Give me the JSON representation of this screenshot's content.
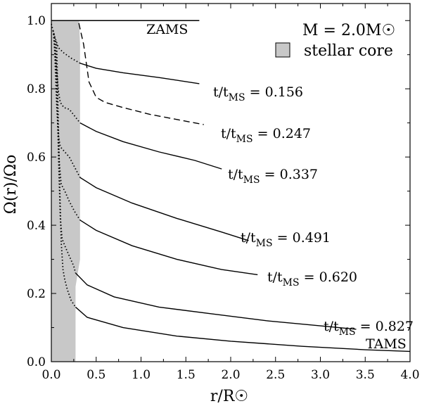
{
  "chart_data": {
    "type": "line",
    "title": "",
    "xlabel": "r/R☉",
    "ylabel": "Ω(r)/Ωo",
    "xlim": [
      0.0,
      4.0
    ],
    "ylim": [
      0.0,
      1.05
    ],
    "xticks": [
      0.0,
      0.5,
      1.0,
      1.5,
      2.0,
      2.5,
      3.0,
      3.5,
      4.0
    ],
    "xtick_labels": [
      "0.0",
      "0.5",
      "1.0",
      "1.5",
      "2.0",
      "2.5",
      "3.0",
      "3.5",
      "4.0"
    ],
    "yticks": [
      0.0,
      0.2,
      0.4,
      0.6,
      0.8,
      1.0
    ],
    "ytick_labels": [
      "0.0",
      "0.2",
      "0.4",
      "0.6",
      "0.8",
      "1.0"
    ],
    "legend": {
      "mass_label": "M = 2.0M☉",
      "core_label": "stellar core",
      "core_color": "#c8c8c8",
      "placement": "top-right"
    },
    "core_region": [
      [
        0.0,
        1.0
      ],
      [
        0.31,
        1.0
      ],
      [
        0.32,
        0.93
      ],
      [
        0.32,
        0.3
      ],
      [
        0.27,
        0.22
      ],
      [
        0.27,
        0.0
      ],
      [
        0.0,
        0.0
      ]
    ],
    "series": [
      {
        "name": "ZAMS",
        "label": "ZAMS",
        "style": "solid",
        "x": [
          0.0,
          1.65
        ],
        "y": [
          1.0,
          1.0
        ]
      },
      {
        "name": "t/tMS = 0.156",
        "label_prefix": "t/t",
        "label_sub": "MS",
        "label_value": " = 0.156",
        "style": "solid",
        "x": [
          0.32,
          0.5,
          0.8,
          1.2,
          1.65
        ],
        "y": [
          0.875,
          0.86,
          0.847,
          0.833,
          0.815
        ]
      },
      {
        "name": "t/tMS = 0.247",
        "label_prefix": "t/t",
        "label_sub": "MS",
        "label_value": " = 0.247",
        "style": "dashed",
        "x": [
          0.0,
          0.3,
          0.36,
          0.42,
          0.5,
          0.6,
          0.8,
          1.1,
          1.4,
          1.7
        ],
        "y": [
          1.0,
          1.0,
          0.93,
          0.82,
          0.775,
          0.76,
          0.745,
          0.725,
          0.71,
          0.695
        ]
      },
      {
        "name": "t/tMS = 0.337",
        "label_prefix": "t/t",
        "label_sub": "MS",
        "label_value": " = 0.337",
        "style": "solid",
        "x": [
          0.32,
          0.5,
          0.8,
          1.2,
          1.6,
          1.9
        ],
        "y": [
          0.7,
          0.675,
          0.645,
          0.615,
          0.59,
          0.565
        ]
      },
      {
        "name": "t/tMS = 0.491",
        "label_prefix": "t/t",
        "label_sub": "MS",
        "label_value": " = 0.491",
        "style": "solid",
        "x": [
          0.32,
          0.5,
          0.9,
          1.4,
          1.9,
          2.2
        ],
        "y": [
          0.54,
          0.51,
          0.465,
          0.42,
          0.38,
          0.355
        ]
      },
      {
        "name": "t/tMS = 0.620",
        "label_prefix": "t/t",
        "label_sub": "MS",
        "label_value": " = 0.620",
        "style": "solid",
        "x": [
          0.32,
          0.5,
          0.9,
          1.4,
          1.9,
          2.3
        ],
        "y": [
          0.415,
          0.385,
          0.34,
          0.3,
          0.27,
          0.255
        ]
      },
      {
        "name": "t/tMS = 0.827",
        "label_prefix": "t/t",
        "label_sub": "MS",
        "label_value": " = 0.827",
        "style": "solid",
        "x": [
          0.27,
          0.4,
          0.7,
          1.2,
          1.8,
          2.4,
          3.0,
          3.4
        ],
        "y": [
          0.26,
          0.225,
          0.19,
          0.16,
          0.14,
          0.12,
          0.105,
          0.095
        ]
      },
      {
        "name": "TAMS",
        "label": "TAMS",
        "style": "solid",
        "x": [
          0.27,
          0.4,
          0.8,
          1.4,
          2.0,
          2.8,
          3.5,
          4.0
        ],
        "y": [
          0.16,
          0.13,
          0.1,
          0.075,
          0.06,
          0.045,
          0.035,
          0.03
        ]
      },
      {
        "name": "inner-0.156",
        "style": "dotted",
        "x": [
          0.0,
          0.04,
          0.08,
          0.14,
          0.22,
          0.32
        ],
        "y": [
          0.99,
          0.95,
          0.92,
          0.905,
          0.89,
          0.875
        ]
      },
      {
        "name": "inner-0.337",
        "style": "dotted",
        "x": [
          0.02,
          0.05,
          0.08,
          0.1,
          0.14,
          0.2,
          0.26,
          0.32
        ],
        "y": [
          0.97,
          0.88,
          0.79,
          0.76,
          0.745,
          0.74,
          0.72,
          0.7
        ]
      },
      {
        "name": "inner-0.491",
        "style": "dotted",
        "x": [
          0.03,
          0.06,
          0.08,
          0.1,
          0.15,
          0.2,
          0.26,
          0.32
        ],
        "y": [
          0.96,
          0.75,
          0.66,
          0.63,
          0.615,
          0.6,
          0.57,
          0.54
        ]
      },
      {
        "name": "inner-0.620",
        "style": "dotted",
        "x": [
          0.04,
          0.07,
          0.09,
          0.11,
          0.15,
          0.2,
          0.26,
          0.32
        ],
        "y": [
          0.95,
          0.7,
          0.58,
          0.52,
          0.5,
          0.47,
          0.44,
          0.415
        ]
      },
      {
        "name": "inner-0.827",
        "style": "dotted",
        "x": [
          0.05,
          0.08,
          0.1,
          0.12,
          0.15,
          0.2,
          0.25,
          0.27
        ],
        "y": [
          0.94,
          0.6,
          0.42,
          0.36,
          0.34,
          0.31,
          0.28,
          0.26
        ]
      },
      {
        "name": "inner-TAMS",
        "style": "dotted",
        "x": [
          0.06,
          0.09,
          0.11,
          0.13,
          0.15,
          0.18,
          0.22,
          0.27
        ],
        "y": [
          0.93,
          0.55,
          0.35,
          0.27,
          0.24,
          0.21,
          0.18,
          0.16
        ]
      }
    ]
  }
}
